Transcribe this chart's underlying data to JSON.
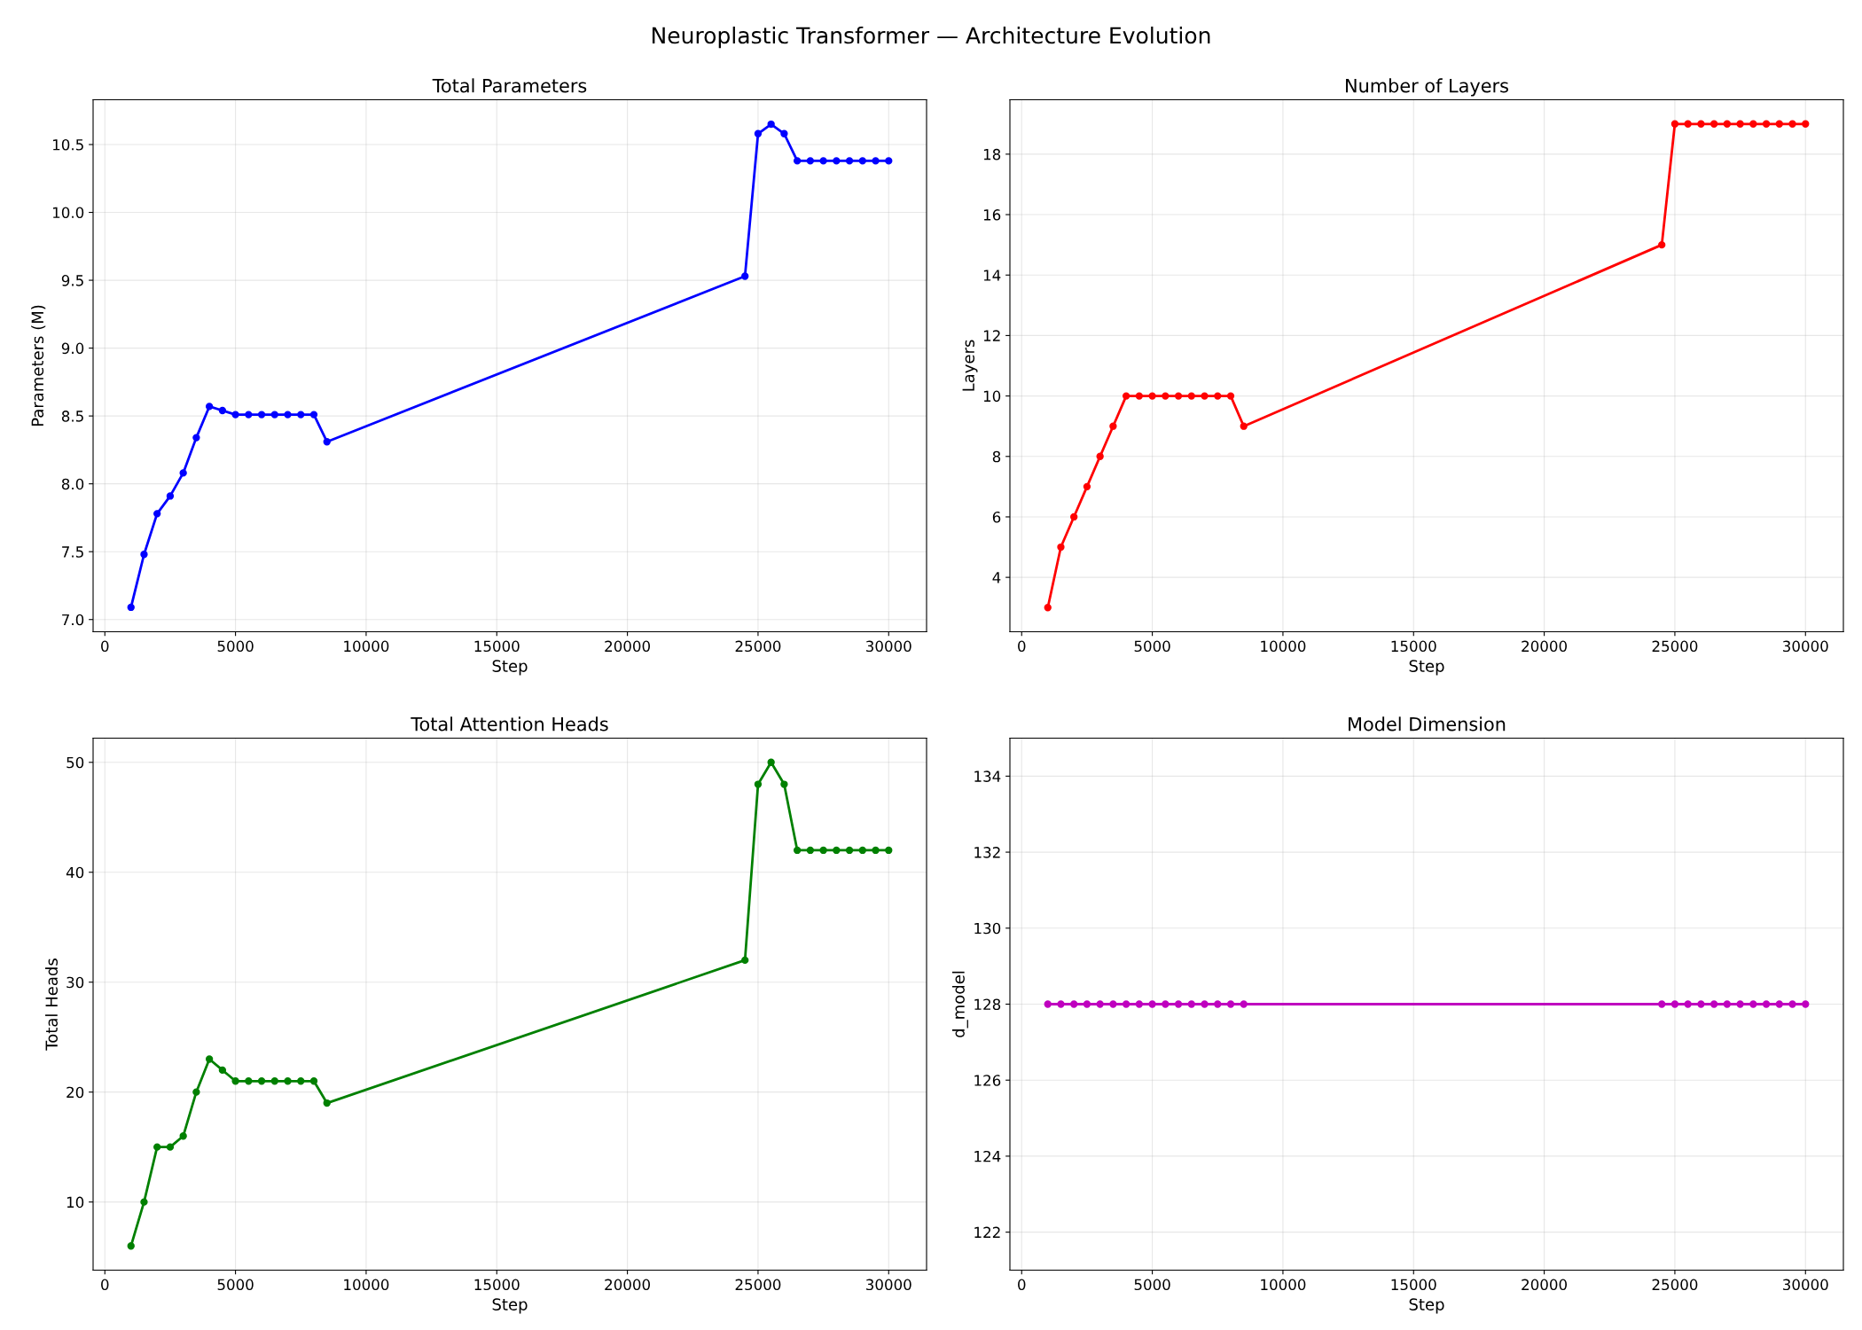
{
  "chart_data": [
    {
      "type": "line",
      "title": "Total Parameters",
      "xlabel": "Step",
      "ylabel": "Parameters (M)",
      "annotations": [
        "Neuroplastic Transformer — Architecture Evolution"
      ],
      "x": [
        1000,
        1500,
        2000,
        2500,
        3000,
        3500,
        4000,
        4500,
        5000,
        5500,
        6000,
        6500,
        7000,
        7500,
        8000,
        8500,
        24500,
        25000,
        25500,
        26000,
        26500,
        27000,
        27500,
        28000,
        28500,
        29000,
        29500,
        30000
      ],
      "series": [
        {
          "color": "#0000ff",
          "values": [
            7.09,
            7.48,
            7.78,
            7.91,
            8.08,
            8.34,
            8.57,
            8.54,
            8.51,
            8.51,
            8.51,
            8.51,
            8.51,
            8.51,
            8.51,
            8.31,
            9.53,
            10.58,
            10.65,
            10.58,
            10.38,
            10.38,
            10.38,
            10.38,
            10.38,
            10.38,
            10.38,
            10.38
          ]
        }
      ],
      "xlim": [
        -450,
        31450
      ],
      "xticks": [
        0,
        5000,
        10000,
        15000,
        20000,
        25000,
        30000
      ],
      "ylim": [
        6.91,
        10.83
      ],
      "yticks": [
        {
          "value": 7.0,
          "label": "7.0"
        },
        {
          "value": 7.5,
          "label": "7.5"
        },
        {
          "value": 8.0,
          "label": "8.0"
        },
        {
          "value": 8.5,
          "label": "8.5"
        },
        {
          "value": 9.0,
          "label": "9.0"
        },
        {
          "value": 9.5,
          "label": "9.5"
        },
        {
          "value": 10.0,
          "label": "10.0"
        },
        {
          "value": 10.5,
          "label": "10.5"
        }
      ],
      "grid": true,
      "marker": "circle",
      "line_style": "solid"
    },
    {
      "type": "line",
      "title": "Number of Layers",
      "xlabel": "Step",
      "ylabel": "Layers",
      "x": [
        1000,
        1500,
        2000,
        2500,
        3000,
        3500,
        4000,
        4500,
        5000,
        5500,
        6000,
        6500,
        7000,
        7500,
        8000,
        8500,
        24500,
        25000,
        25500,
        26000,
        26500,
        27000,
        27500,
        28000,
        28500,
        29000,
        29500,
        30000
      ],
      "series": [
        {
          "color": "#ff0000",
          "values": [
            3,
            5,
            6,
            7,
            8,
            9,
            10,
            10,
            10,
            10,
            10,
            10,
            10,
            10,
            10,
            9,
            15,
            19,
            19,
            19,
            19,
            19,
            19,
            19,
            19,
            19,
            19,
            19
          ]
        }
      ],
      "xlim": [
        -450,
        31450
      ],
      "xticks": [
        0,
        5000,
        10000,
        15000,
        20000,
        25000,
        30000
      ],
      "ylim": [
        2.2,
        19.8
      ],
      "yticks": [
        4,
        6,
        8,
        10,
        12,
        14,
        16,
        18
      ],
      "grid": true,
      "marker": "circle",
      "line_style": "solid"
    },
    {
      "type": "line",
      "title": "Total Attention Heads",
      "xlabel": "Step",
      "ylabel": "Total Heads",
      "x": [
        1000,
        1500,
        2000,
        2500,
        3000,
        3500,
        4000,
        4500,
        5000,
        5500,
        6000,
        6500,
        7000,
        7500,
        8000,
        8500,
        24500,
        25000,
        25500,
        26000,
        26500,
        27000,
        27500,
        28000,
        28500,
        29000,
        29500,
        30000
      ],
      "series": [
        {
          "color": "#008000",
          "values": [
            6,
            10,
            15,
            15,
            16,
            20,
            23,
            22,
            21,
            21,
            21,
            21,
            21,
            21,
            21,
            19,
            32,
            48,
            50,
            48,
            42,
            42,
            42,
            42,
            42,
            42,
            42,
            42
          ]
        }
      ],
      "xlim": [
        -450,
        31450
      ],
      "xticks": [
        0,
        5000,
        10000,
        15000,
        20000,
        25000,
        30000
      ],
      "ylim": [
        3.8,
        52.2
      ],
      "yticks": [
        10,
        20,
        30,
        40,
        50
      ],
      "grid": true,
      "marker": "circle",
      "line_style": "solid"
    },
    {
      "type": "line",
      "title": "Model Dimension",
      "xlabel": "Step",
      "ylabel": "d_model",
      "x": [
        1000,
        1500,
        2000,
        2500,
        3000,
        3500,
        4000,
        4500,
        5000,
        5500,
        6000,
        6500,
        7000,
        7500,
        8000,
        8500,
        24500,
        25000,
        25500,
        26000,
        26500,
        27000,
        27500,
        28000,
        28500,
        29000,
        29500,
        30000
      ],
      "series": [
        {
          "color": "#bf00bf",
          "values": [
            128,
            128,
            128,
            128,
            128,
            128,
            128,
            128,
            128,
            128,
            128,
            128,
            128,
            128,
            128,
            128,
            128,
            128,
            128,
            128,
            128,
            128,
            128,
            128,
            128,
            128,
            128,
            128
          ]
        }
      ],
      "xlim": [
        -450,
        31450
      ],
      "xticks": [
        0,
        5000,
        10000,
        15000,
        20000,
        25000,
        30000
      ],
      "ylim": [
        121,
        135
      ],
      "yticks": [
        122,
        124,
        126,
        128,
        130,
        132,
        134
      ],
      "grid": true,
      "marker": "circle",
      "line_style": "solid"
    }
  ]
}
